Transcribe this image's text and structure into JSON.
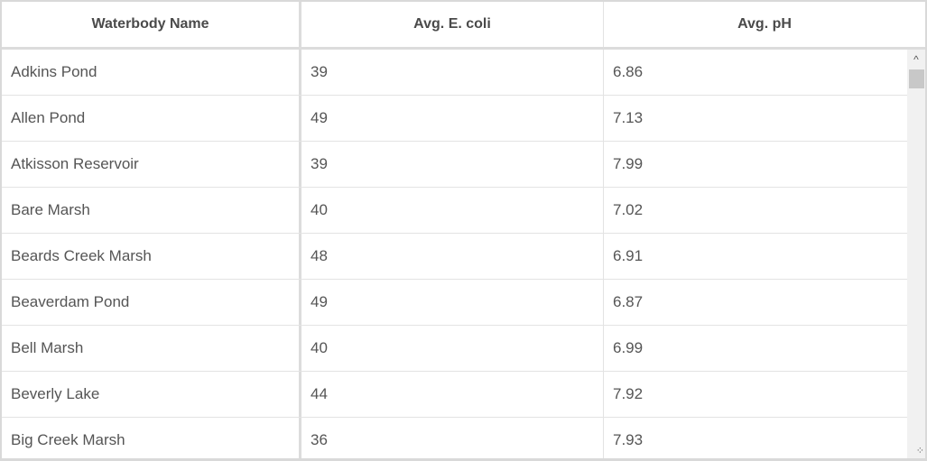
{
  "columns": [
    "Waterbody Name",
    "Avg. E. coli",
    "Avg. pH"
  ],
  "rows": [
    [
      "Adkins Pond",
      "39",
      "6.86"
    ],
    [
      "Allen Pond",
      "49",
      "7.13"
    ],
    [
      "Atkisson Reservoir",
      "39",
      "7.99"
    ],
    [
      "Bare Marsh",
      "40",
      "7.02"
    ],
    [
      "Beards Creek Marsh",
      "48",
      "6.91"
    ],
    [
      "Beaverdam Pond",
      "49",
      "6.87"
    ],
    [
      "Bell Marsh",
      "40",
      "6.99"
    ],
    [
      "Beverly Lake",
      "44",
      "7.92"
    ],
    [
      "Big Creek Marsh",
      "36",
      "7.93"
    ]
  ],
  "scrollbar": {
    "position_fraction": 0.0,
    "up_icon": "chevron-up-icon",
    "grip_icon": "resize-grip-icon"
  }
}
